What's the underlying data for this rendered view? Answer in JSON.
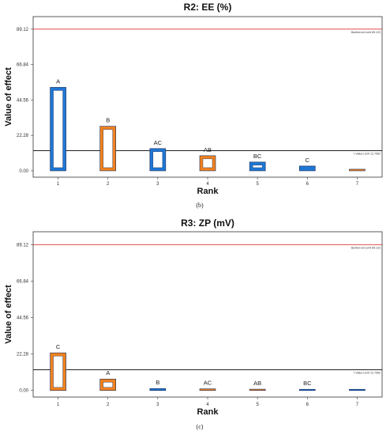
{
  "chart_data": [
    {
      "type": "bar",
      "title": "R2: EE (%)",
      "xlabel": "Rank",
      "ylabel": "Value of effect",
      "caption": "(b)",
      "categories": [
        1,
        2,
        3,
        4,
        5,
        6,
        7
      ],
      "y_ticks": [
        "0.00",
        "22.28",
        "44.56",
        "66.84",
        "89.12"
      ],
      "ylim": [
        -4,
        97
      ],
      "bars": [
        {
          "rank": 1,
          "label": "A",
          "value": 52.5,
          "color": "#1f77d4"
        },
        {
          "rank": 2,
          "label": "B",
          "value": 28.0,
          "color": "#f0821e"
        },
        {
          "rank": 3,
          "label": "AC",
          "value": 14.0,
          "color": "#1f77d4"
        },
        {
          "rank": 4,
          "label": "AB",
          "value": 9.5,
          "color": "#f0821e"
        },
        {
          "rank": 5,
          "label": "BC",
          "value": 5.5,
          "color": "#1f77d4"
        },
        {
          "rank": 6,
          "label": "C",
          "value": 3.0,
          "color": "#1f77d4"
        },
        {
          "rank": 7,
          "label": "",
          "value": 1.0,
          "color": "#f0821e"
        }
      ],
      "bonferroni_limit": {
        "value": 89.123,
        "label": "Bonferroni Limit 89.123",
        "color": "#e03030"
      },
      "t_value_limit": {
        "value": 12.7062,
        "label": "t-Value Limit 12.7062",
        "color": "#000000"
      }
    },
    {
      "type": "bar",
      "title": "R3: ZP (mV)",
      "xlabel": "Rank",
      "ylabel": "Value of effect",
      "caption": "(c)",
      "categories": [
        1,
        2,
        3,
        4,
        5,
        6,
        7
      ],
      "y_ticks": [
        "0.00",
        "22.28",
        "44.56",
        "66.84",
        "89.12"
      ],
      "ylim": [
        -4,
        97
      ],
      "bars": [
        {
          "rank": 1,
          "label": "C",
          "value": 23.0,
          "color": "#f0821e"
        },
        {
          "rank": 2,
          "label": "A",
          "value": 7.0,
          "color": "#f0821e"
        },
        {
          "rank": 3,
          "label": "B",
          "value": 1.2,
          "color": "#1f77d4"
        },
        {
          "rank": 4,
          "label": "AC",
          "value": 1.0,
          "color": "#f0821e"
        },
        {
          "rank": 5,
          "label": "AB",
          "value": 0.8,
          "color": "#f0821e"
        },
        {
          "rank": 6,
          "label": "BC",
          "value": 0.6,
          "color": "#1f77d4"
        },
        {
          "rank": 7,
          "label": "",
          "value": 0.5,
          "color": "#1f77d4"
        }
      ],
      "bonferroni_limit": {
        "value": 89.123,
        "label": "Bonferroni Limit 89.123",
        "color": "#e03030"
      },
      "t_value_limit": {
        "value": 12.7062,
        "label": "t-Value Limit 12.7062",
        "color": "#000000"
      }
    }
  ]
}
